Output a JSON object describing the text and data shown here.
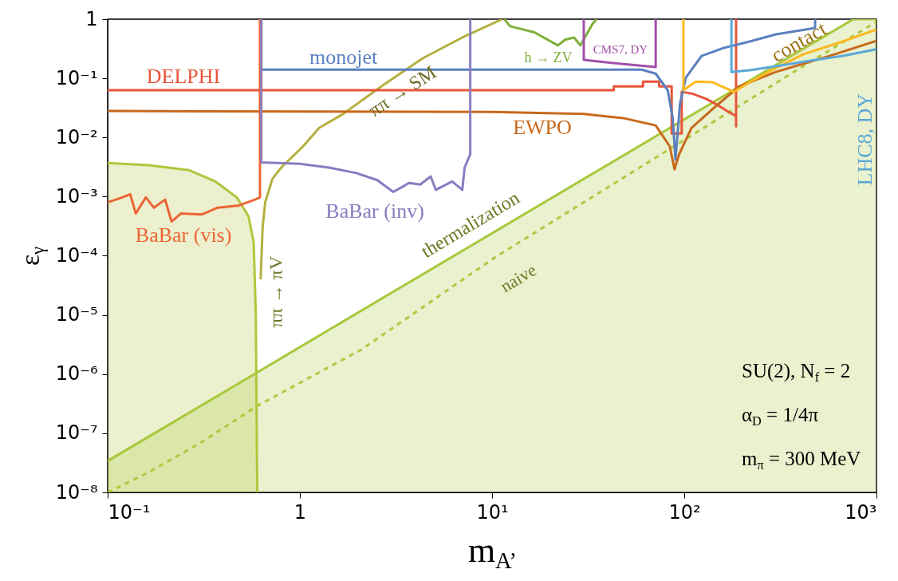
{
  "chart_data": {
    "type": "line",
    "xlabel": "m$_{A’}$",
    "ylabel": "ε$_{γ}$",
    "log": "xy",
    "xlim": [
      0.1,
      1000
    ],
    "ylim": [
      1e-08,
      1
    ],
    "xticks": [
      {
        "value": 0.1,
        "label": "10⁻¹"
      },
      1,
      {
        "value": 10,
        "label": "10¹"
      },
      {
        "value": 100,
        "label": "10²"
      },
      {
        "value": 1000,
        "label": "10³"
      }
    ],
    "yticks": [
      {
        "value": 1e-08,
        "label": "10⁻⁸"
      },
      {
        "value": 1e-07,
        "label": "10⁻⁷"
      },
      {
        "value": 1e-06,
        "label": "10⁻⁶"
      },
      {
        "value": 1e-05,
        "label": "10⁻⁵"
      },
      {
        "value": 0.0001,
        "label": "10⁻⁴"
      },
      {
        "value": 0.001,
        "label": "10⁻³"
      },
      {
        "value": 0.01,
        "label": "10⁻²"
      },
      {
        "value": 0.1,
        "label": "10⁻¹"
      },
      1
    ],
    "series": [
      {
        "name": "ππ → πV",
        "type": "area",
        "color": "#b3c53c",
        "x": [
          0.1,
          0.164,
          0.265,
          0.364,
          0.47,
          0.54,
          0.575,
          0.59,
          0.6
        ],
        "values": [
          0.0037,
          0.0034,
          0.0028,
          0.0018,
          0.00097,
          0.00047,
          0.00017,
          1e-05,
          1e-08
        ]
      },
      {
        "name": "thermalization",
        "type": "area",
        "color": "#a8c83c",
        "x": [
          0.1,
          759,
          1000
        ],
        "values": [
          3.4e-08,
          1,
          1
        ]
      },
      {
        "name": "naive",
        "line_style": "dashed",
        "color": "#b0c840",
        "x": [
          0.1,
          0.164,
          0.309,
          0.6,
          2.09,
          10.3,
          415,
          1000
        ],
        "values": [
          1e-08,
          2.2e-08,
          7.1e-08,
          2.9e-07,
          2.6e-06,
          9.3e-05,
          0.16,
          0.9
        ]
      },
      {
        "name": "ππ → SM",
        "color": "#b5b040",
        "x": [
          0.625,
          0.64,
          0.66,
          0.72,
          0.8,
          1.04,
          1.26,
          1.67,
          2.7,
          4.36,
          7.0,
          11.3
        ],
        "values": [
          4e-05,
          0.0003,
          0.0008,
          0.002,
          0.0031,
          0.0071,
          0.0145,
          0.0247,
          0.076,
          0.218,
          0.49,
          1
        ]
      },
      {
        "name": "DELPHI",
        "color": "#e8553a",
        "x": [
          0.1,
          43,
          43,
          61,
          61,
          74,
          74,
          86,
          86,
          97,
          97,
          110,
          130,
          150,
          170,
          186,
          186,
          186
        ],
        "values": [
          0.063,
          0.063,
          0.073,
          0.073,
          0.088,
          0.088,
          0.073,
          0.073,
          0.0117,
          0.0117,
          0.059,
          0.055,
          0.045,
          0.035,
          0.027,
          0.023,
          0.0155,
          1
        ]
      },
      {
        "name": "monojet",
        "color": "#5b80c0",
        "x": [
          0.63,
          0.63,
          10,
          60,
          71,
          82,
          87,
          90,
          95,
          102,
          123,
          160,
          219,
          300,
          479,
          480
        ],
        "values": [
          1,
          0.14,
          0.14,
          0.14,
          0.12,
          0.063,
          0.0218,
          0.0042,
          0.037,
          0.103,
          0.239,
          0.326,
          0.419,
          0.553,
          0.71,
          1
        ]
      },
      {
        "name": "EWPO",
        "color": "#c8691c",
        "x": [
          0.1,
          10,
          30,
          49,
          71,
          84,
          89,
          94,
          109,
          140,
          193,
          300,
          569,
          1000
        ],
        "values": [
          0.028,
          0.027,
          0.025,
          0.021,
          0.016,
          0.0071,
          0.0029,
          0.0052,
          0.0145,
          0.03,
          0.073,
          0.128,
          0.239,
          0.43
        ]
      },
      {
        "name": "BaBar (vis)",
        "color": "#ec6535",
        "x": [
          0.1,
          0.119,
          0.131,
          0.14,
          0.158,
          0.174,
          0.199,
          0.215,
          0.241,
          0.309,
          0.374,
          0.483,
          0.584,
          0.62,
          0.62
        ],
        "values": [
          0.0008,
          0.00097,
          0.0011,
          0.00052,
          0.00097,
          0.00065,
          0.00089,
          0.00038,
          0.00052,
          0.0005,
          0.00065,
          0.00071,
          0.00089,
          0.00097,
          1
        ]
      },
      {
        "name": "BaBar (inv)",
        "color": "#8a7cc0",
        "x": [
          0.63,
          0.63,
          1.0,
          1.42,
          1.97,
          2.53,
          3.06,
          3.7,
          4.23,
          4.79,
          5.1,
          6.2,
          7.0,
          7.2,
          7.7,
          7.7
        ],
        "values": [
          1,
          0.0038,
          0.0036,
          0.0031,
          0.0025,
          0.0019,
          0.0012,
          0.0017,
          0.0016,
          0.0022,
          0.0013,
          0.0018,
          0.0013,
          0.0031,
          0.0052,
          1
        ]
      },
      {
        "name": "h → ZV",
        "color": "#80b03a",
        "x": [
          11.6,
          12.4,
          16.6,
          22,
          24,
          26.7,
          28.8,
          33.3,
          35
        ],
        "values": [
          1,
          0.76,
          0.6,
          0.36,
          0.45,
          0.49,
          0.36,
          0.83,
          1
        ]
      },
      {
        "name": "CMS7, DY",
        "color": "#a050a8",
        "x": [
          30,
          30,
          47,
          71,
          71
        ],
        "values": [
          1,
          0.205,
          0.175,
          0.155,
          1
        ]
      },
      {
        "name": "contact",
        "color": "#fbb91e",
        "x": [
          99,
          99,
          115,
          140,
          181,
          219,
          300,
          415,
          670,
          1000
        ],
        "values": [
          1,
          0.063,
          0.088,
          0.086,
          0.059,
          0.086,
          0.15,
          0.254,
          0.42,
          0.67
        ]
      },
      {
        "name": "LHC8, DY",
        "color": "#5ca8d8",
        "x": [
          176,
          176,
          219,
          300,
          415,
          670,
          1000
        ],
        "values": [
          1,
          0.128,
          0.137,
          0.16,
          0.19,
          0.24,
          0.31
        ]
      }
    ],
    "annotations": [
      "SU(2), N$_{f}$ = 2",
      "α$_{D}$ = 1/4π",
      "m$_{π}$ = 300 MeV"
    ]
  }
}
